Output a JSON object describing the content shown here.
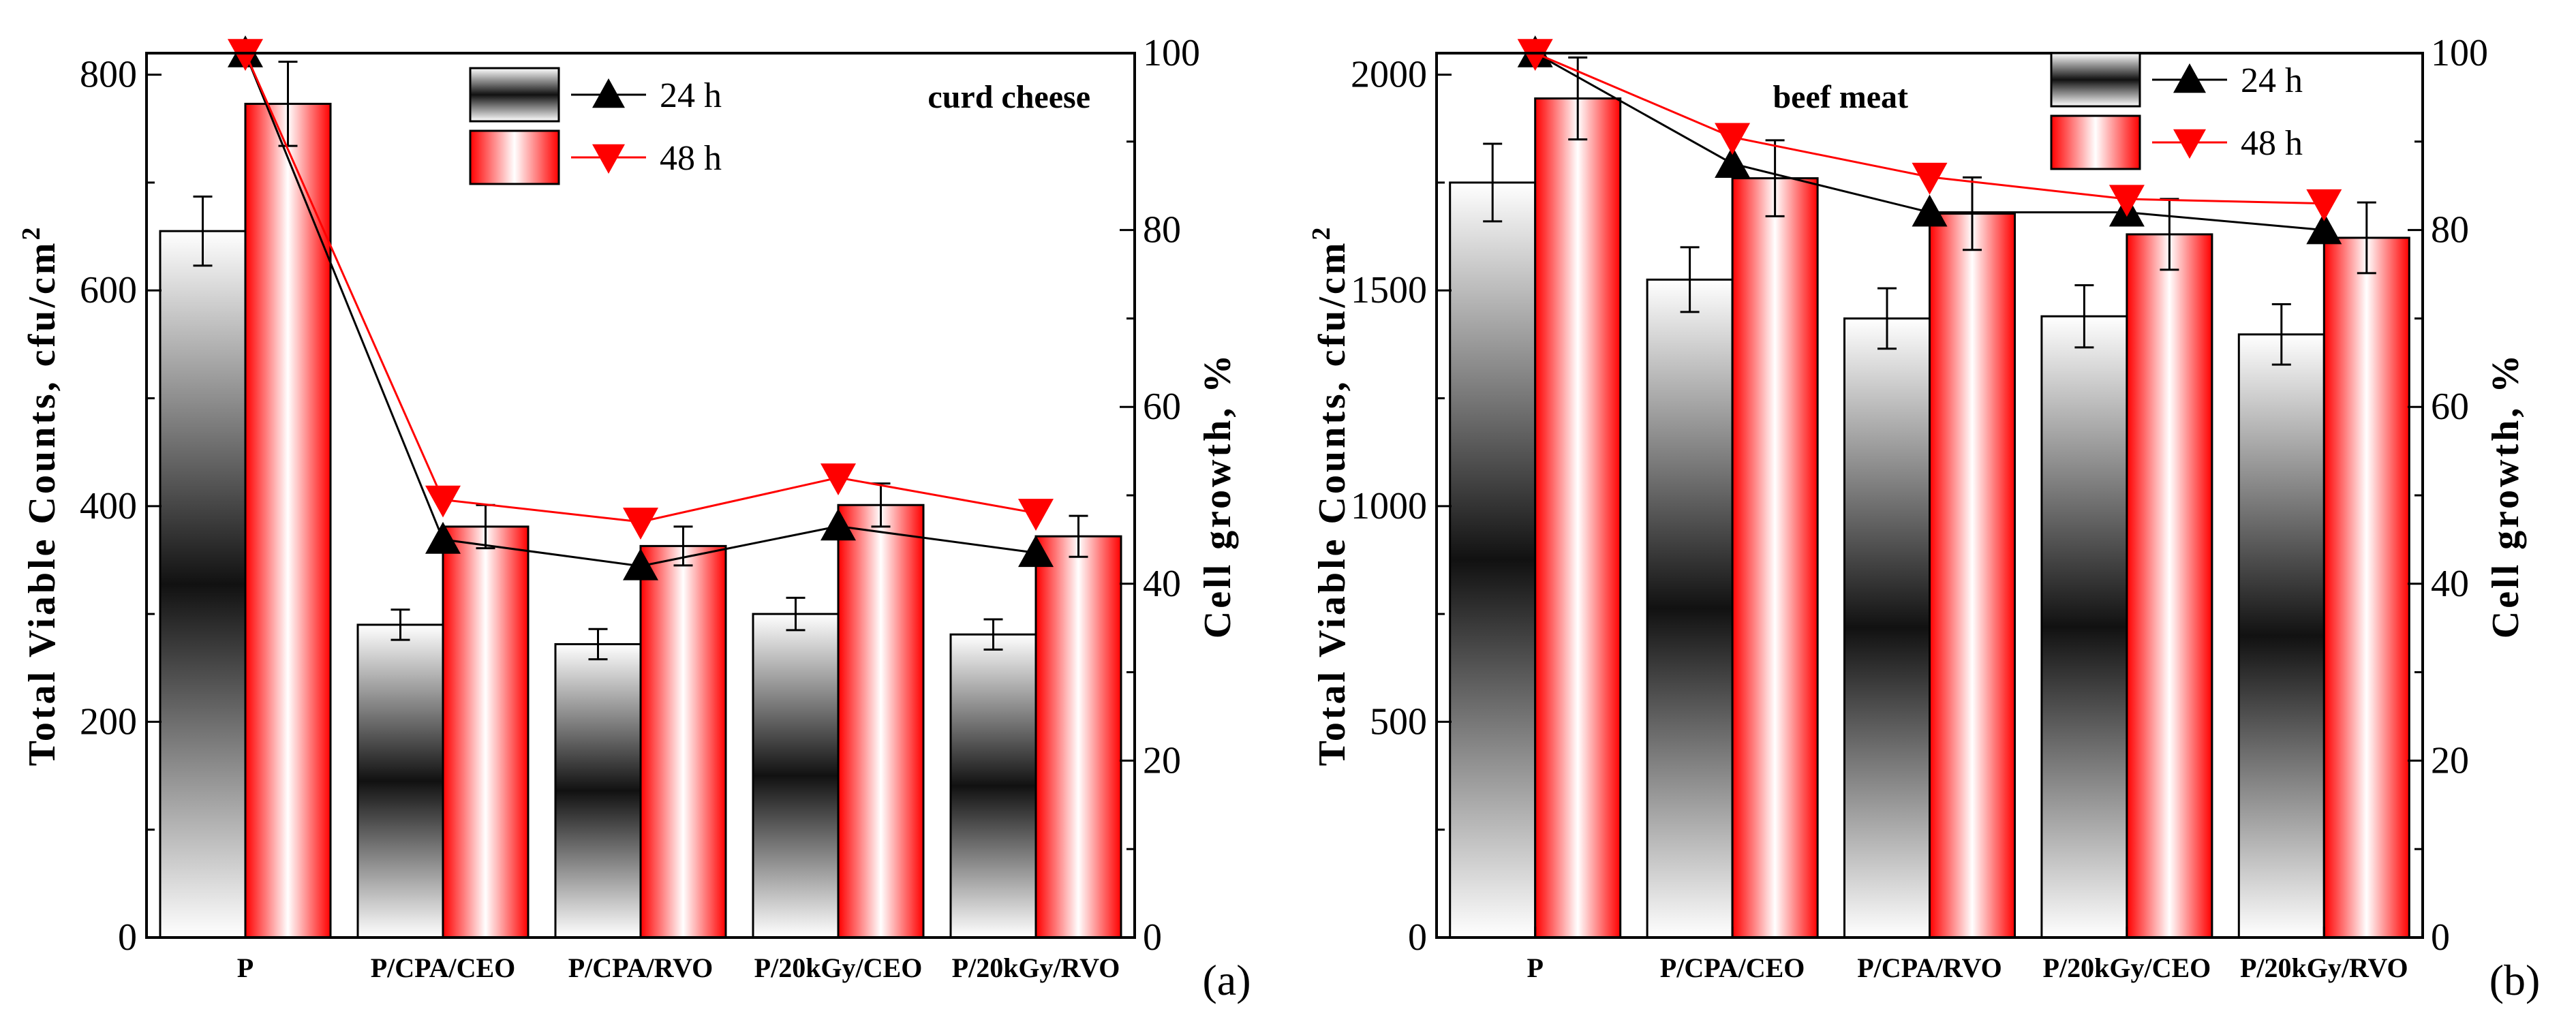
{
  "chart_data": [
    {
      "type": "bar",
      "panel_label": "(a)",
      "title": "curd cheese",
      "categories": [
        "P",
        "P/CPA/CEO",
        "P/CPA/RVO",
        "P/20kGy/CEO",
        "P/20kGy/RVO"
      ],
      "ylabel": "Total Viable Counts, cfu/cm",
      "ylabel_superscript": "2",
      "y2label": "Cell growth, %",
      "ylim": [
        0,
        820
      ],
      "yticks": [
        0,
        200,
        400,
        600,
        800
      ],
      "y2lim": [
        0,
        100
      ],
      "y2ticks": [
        0,
        20,
        40,
        60,
        80,
        100
      ],
      "legend": [
        "24 h",
        "48 h"
      ],
      "bar_series": [
        {
          "name": "24 h",
          "values": [
            655,
            290,
            272,
            300,
            281
          ],
          "errors": [
            32,
            14,
            14,
            15,
            14
          ]
        },
        {
          "name": "48 h",
          "values": [
            773,
            381,
            363,
            401,
            372
          ],
          "errors": [
            39,
            20,
            18,
            20,
            19
          ]
        }
      ],
      "line_series": [
        {
          "name": "24 h",
          "marker": "up-triangle",
          "color": "#000000",
          "values": [
            100,
            45,
            42,
            46.5,
            43.5
          ]
        },
        {
          "name": "48 h",
          "marker": "down-triangle",
          "color": "#ff0000",
          "values": [
            100,
            49.5,
            47,
            52,
            48
          ]
        }
      ]
    },
    {
      "type": "bar",
      "panel_label": "(b)",
      "title": "beef meat",
      "categories": [
        "P",
        "P/CPA/CEO",
        "P/CPA/RVO",
        "P/20kGy/CEO",
        "P/20kGy/RVO"
      ],
      "ylabel": "Total Viable Counts, cfu/cm",
      "ylabel_superscript": "2",
      "y2label": "Cell growth, %",
      "ylim": [
        0,
        2050
      ],
      "yticks": [
        0,
        500,
        1000,
        1500,
        2000
      ],
      "y2lim": [
        0,
        100
      ],
      "y2ticks": [
        0,
        20,
        40,
        60,
        80,
        100
      ],
      "legend": [
        "24 h",
        "48 h"
      ],
      "bar_series": [
        {
          "name": "24 h",
          "values": [
            1750,
            1525,
            1435,
            1440,
            1398
          ],
          "errors": [
            90,
            75,
            70,
            72,
            70
          ]
        },
        {
          "name": "48 h",
          "values": [
            1945,
            1760,
            1678,
            1630,
            1622
          ],
          "errors": [
            95,
            88,
            84,
            82,
            82
          ]
        }
      ],
      "line_series": [
        {
          "name": "24 h",
          "marker": "up-triangle",
          "color": "#000000",
          "values": [
            100,
            87.5,
            82,
            82,
            80
          ]
        },
        {
          "name": "48 h",
          "marker": "down-triangle",
          "color": "#ff0000",
          "values": [
            100,
            90.5,
            86,
            83.5,
            83
          ]
        }
      ]
    }
  ]
}
